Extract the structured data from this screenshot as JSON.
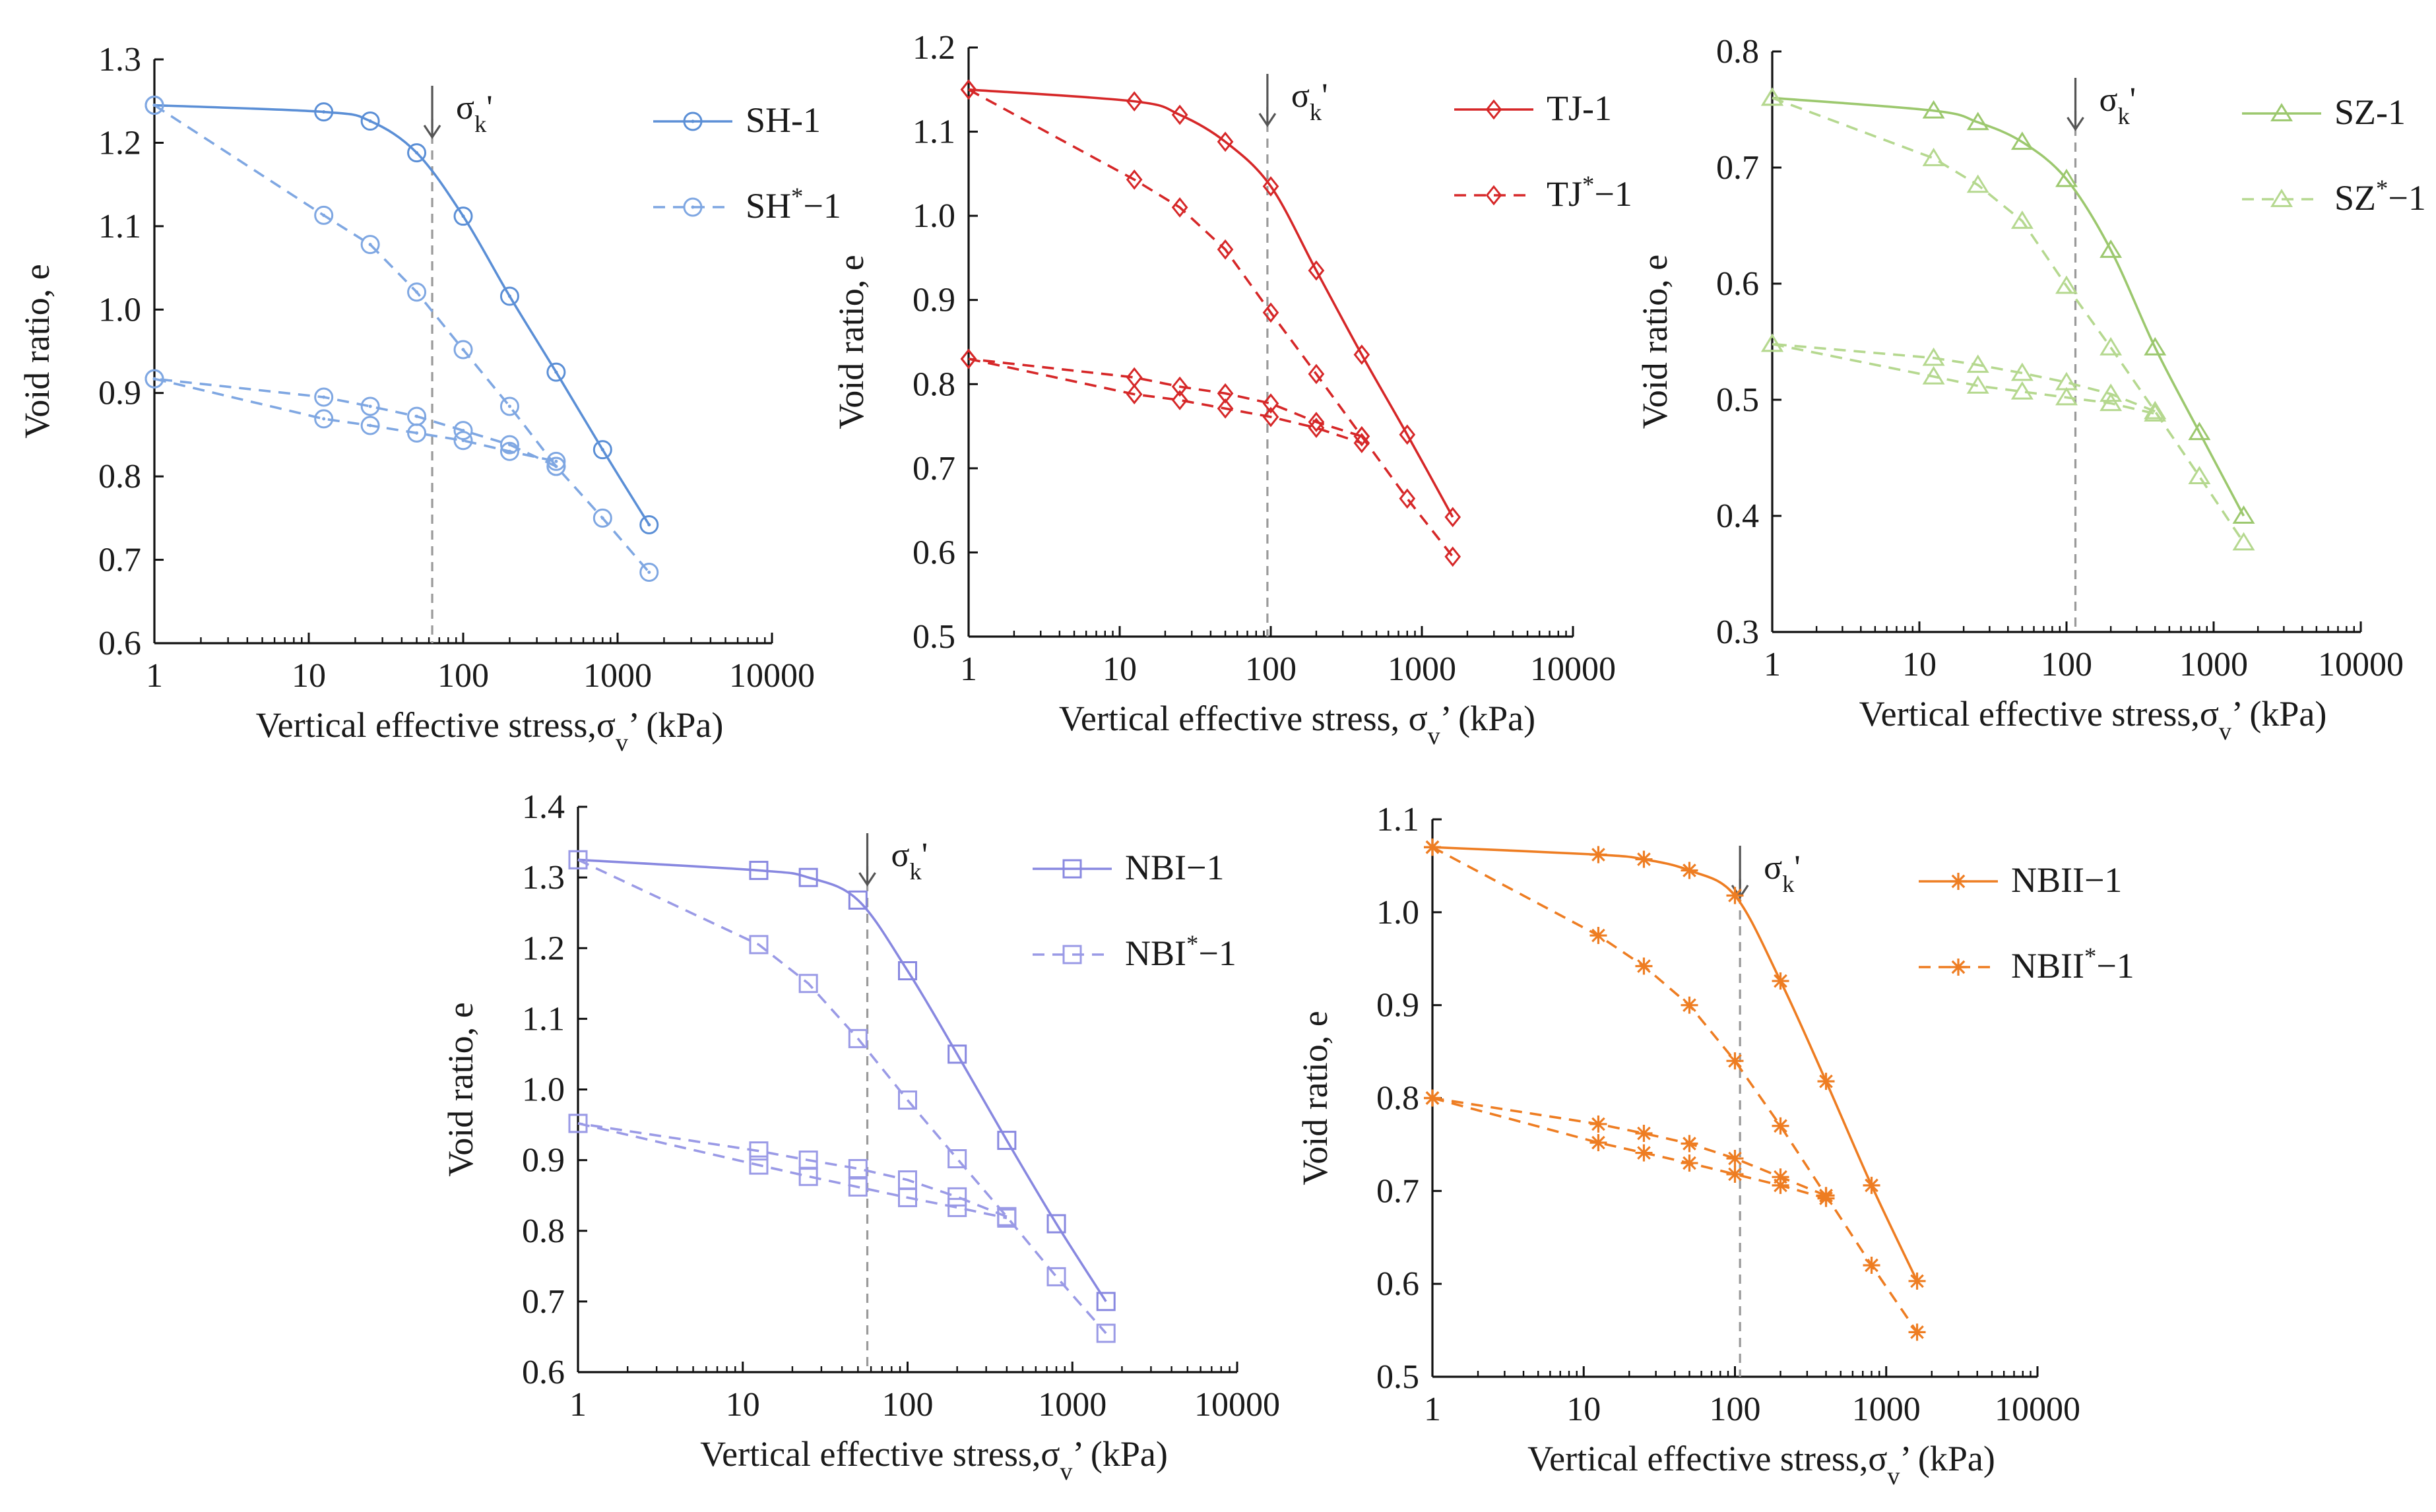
{
  "chart_data": [
    {
      "type": "line",
      "id": "sh",
      "xlabel": "Vertical effective stress,σv’ (kPa)",
      "ylabel": "Void ratio, e",
      "xscale": "log",
      "xlim": [
        1,
        10000
      ],
      "ylim": [
        0.6,
        1.3
      ],
      "yticks": [
        0.6,
        0.7,
        0.8,
        0.9,
        1.0,
        1.1,
        1.2,
        1.3
      ],
      "xticks": [
        1,
        10,
        100,
        1000,
        10000
      ],
      "marker": "circle",
      "color": "#5b8fd6",
      "color_light": "#7fa7e2",
      "sigma_k_label": "σk'",
      "sigma_k": 63,
      "legend_position": "top-right",
      "series": [
        {
          "name": "SH-1",
          "style": "solid",
          "smooth": true,
          "points": [
            [
              1,
              1.245
            ],
            [
              12.5,
              1.237
            ],
            [
              25,
              1.226
            ],
            [
              50,
              1.188
            ],
            [
              100,
              1.112
            ],
            [
              200,
              1.016
            ],
            [
              400,
              0.925
            ],
            [
              800,
              0.832
            ],
            [
              1600,
              0.742
            ]
          ]
        },
        {
          "name": "SH*−1",
          "style": "dashed",
          "smooth": false,
          "points": [
            [
              1,
              1.245
            ],
            [
              12.5,
              1.113
            ],
            [
              25,
              1.078
            ],
            [
              50,
              1.021
            ],
            [
              100,
              0.952
            ],
            [
              200,
              0.884
            ],
            [
              400,
              0.812
            ],
            [
              800,
              0.75
            ],
            [
              1600,
              0.685
            ]
          ]
        },
        {
          "name": "SH*−1 unload",
          "style": "dashed",
          "smooth": false,
          "legend": false,
          "points": [
            [
              400,
              0.812
            ],
            [
              200,
              0.838
            ],
            [
              100,
              0.855
            ],
            [
              50,
              0.872
            ],
            [
              25,
              0.884
            ],
            [
              12.5,
              0.895
            ],
            [
              1,
              0.917
            ]
          ]
        },
        {
          "name": "SH*−1 reload",
          "style": "dashed",
          "smooth": false,
          "legend": false,
          "points": [
            [
              1,
              0.917
            ],
            [
              12.5,
              0.869
            ],
            [
              25,
              0.861
            ],
            [
              50,
              0.852
            ],
            [
              100,
              0.843
            ],
            [
              200,
              0.83
            ],
            [
              400,
              0.818
            ]
          ]
        }
      ]
    },
    {
      "type": "line",
      "id": "tj",
      "xlabel": "Vertical effective stress, σv’ (kPa)",
      "ylabel": "Void ratio, e",
      "xscale": "log",
      "xlim": [
        1,
        10000
      ],
      "ylim": [
        0.5,
        1.2
      ],
      "yticks": [
        0.5,
        0.6,
        0.7,
        0.8,
        0.9,
        1.0,
        1.1,
        1.2
      ],
      "xticks": [
        1,
        10,
        100,
        1000,
        10000
      ],
      "marker": "diamond",
      "color": "#d62728",
      "color_light": "#d62728",
      "sigma_k_label": "σk'",
      "sigma_k": 95,
      "legend_position": "top-right",
      "series": [
        {
          "name": "TJ-1",
          "style": "solid",
          "smooth": true,
          "points": [
            [
              1,
              1.15
            ],
            [
              12.5,
              1.136
            ],
            [
              25,
              1.12
            ],
            [
              50,
              1.088
            ],
            [
              100,
              1.035
            ],
            [
              200,
              0.935
            ],
            [
              400,
              0.835
            ],
            [
              800,
              0.74
            ],
            [
              1600,
              0.642
            ]
          ]
        },
        {
          "name": "TJ*−1",
          "style": "dashed",
          "smooth": false,
          "points": [
            [
              1,
              1.15
            ],
            [
              12.5,
              1.043
            ],
            [
              25,
              1.01
            ],
            [
              50,
              0.96
            ],
            [
              100,
              0.885
            ],
            [
              200,
              0.812
            ],
            [
              400,
              0.738
            ],
            [
              800,
              0.664
            ],
            [
              1600,
              0.595
            ]
          ]
        },
        {
          "name": "TJ*−1 unload",
          "style": "dashed",
          "smooth": false,
          "legend": false,
          "points": [
            [
              400,
              0.738
            ],
            [
              200,
              0.755
            ],
            [
              100,
              0.777
            ],
            [
              50,
              0.789
            ],
            [
              25,
              0.797
            ],
            [
              12.5,
              0.808
            ],
            [
              1,
              0.83
            ]
          ]
        },
        {
          "name": "TJ*−1 reload",
          "style": "dashed",
          "smooth": false,
          "legend": false,
          "points": [
            [
              1,
              0.83
            ],
            [
              12.5,
              0.788
            ],
            [
              25,
              0.781
            ],
            [
              50,
              0.771
            ],
            [
              100,
              0.761
            ],
            [
              200,
              0.748
            ],
            [
              400,
              0.73
            ]
          ]
        }
      ]
    },
    {
      "type": "line",
      "id": "sz",
      "xlabel": "Vertical effective stress,σv’ (kPa)",
      "ylabel": "Void ratio, e",
      "xscale": "log",
      "xlim": [
        1,
        10000
      ],
      "ylim": [
        0.3,
        0.8
      ],
      "yticks": [
        0.3,
        0.4,
        0.5,
        0.6,
        0.7,
        0.8
      ],
      "xticks": [
        1,
        10,
        100,
        1000,
        10000
      ],
      "marker": "triangle",
      "color": "#9cc86e",
      "color_light": "#b5d88f",
      "sigma_k_label": "σk'",
      "sigma_k": 115,
      "legend_position": "top-right",
      "series": [
        {
          "name": "SZ-1",
          "style": "solid",
          "smooth": true,
          "points": [
            [
              1,
              0.76
            ],
            [
              12.5,
              0.749
            ],
            [
              25,
              0.739
            ],
            [
              50,
              0.722
            ],
            [
              100,
              0.69
            ],
            [
              200,
              0.629
            ],
            [
              400,
              0.545
            ],
            [
              800,
              0.472
            ],
            [
              1600,
              0.4
            ]
          ]
        },
        {
          "name": "SZ*−1",
          "style": "dashed",
          "smooth": false,
          "points": [
            [
              1,
              0.76
            ],
            [
              12.5,
              0.708
            ],
            [
              25,
              0.685
            ],
            [
              50,
              0.654
            ],
            [
              100,
              0.598
            ],
            [
              200,
              0.545
            ],
            [
              400,
              0.49
            ],
            [
              800,
              0.434
            ],
            [
              1600,
              0.377
            ]
          ]
        },
        {
          "name": "SZ*−1 unload",
          "style": "dashed",
          "smooth": false,
          "legend": false,
          "points": [
            [
              400,
              0.49
            ],
            [
              200,
              0.505
            ],
            [
              100,
              0.515
            ],
            [
              50,
              0.523
            ],
            [
              25,
              0.53
            ],
            [
              12.5,
              0.536
            ],
            [
              1,
              0.548
            ]
          ]
        },
        {
          "name": "SZ*−1 reload",
          "style": "dashed",
          "smooth": false,
          "legend": false,
          "points": [
            [
              1,
              0.548
            ],
            [
              12.5,
              0.52
            ],
            [
              25,
              0.512
            ],
            [
              50,
              0.507
            ],
            [
              100,
              0.502
            ],
            [
              200,
              0.497
            ],
            [
              400,
              0.488
            ]
          ]
        }
      ]
    },
    {
      "type": "line",
      "id": "nb1",
      "xlabel": "Vertical effective stress,σv’ (kPa)",
      "ylabel": "Void ratio, e",
      "xscale": "log",
      "xlim": [
        1,
        10000
      ],
      "ylim": [
        0.6,
        1.4
      ],
      "yticks": [
        0.6,
        0.7,
        0.8,
        0.9,
        1.0,
        1.1,
        1.2,
        1.3,
        1.4
      ],
      "xticks": [
        1,
        10,
        100,
        1000,
        10000
      ],
      "marker": "square",
      "color": "#8888e0",
      "color_light": "#9a9ae6",
      "sigma_k_label": "σk'",
      "sigma_k": 57,
      "legend_position": "top-right",
      "series": [
        {
          "name": "NBI−1",
          "style": "solid",
          "smooth": true,
          "points": [
            [
              1,
              1.325
            ],
            [
              12.5,
              1.31
            ],
            [
              25,
              1.3
            ],
            [
              50,
              1.268
            ],
            [
              100,
              1.168
            ],
            [
              200,
              1.05
            ],
            [
              400,
              0.928
            ],
            [
              800,
              0.81
            ],
            [
              1600,
              0.7
            ]
          ]
        },
        {
          "name": "NBI*−1",
          "style": "dashed",
          "smooth": false,
          "points": [
            [
              1,
              1.325
            ],
            [
              12.5,
              1.205
            ],
            [
              25,
              1.15
            ],
            [
              50,
              1.072
            ],
            [
              100,
              0.985
            ],
            [
              200,
              0.902
            ],
            [
              400,
              0.82
            ],
            [
              800,
              0.735
            ],
            [
              1600,
              0.655
            ]
          ]
        },
        {
          "name": "NBI*−1 unload",
          "style": "dashed",
          "smooth": false,
          "legend": false,
          "points": [
            [
              400,
              0.82
            ],
            [
              200,
              0.848
            ],
            [
              100,
              0.872
            ],
            [
              50,
              0.888
            ],
            [
              25,
              0.9
            ],
            [
              12.5,
              0.913
            ],
            [
              1,
              0.952
            ]
          ]
        },
        {
          "name": "NBI*−1 reload",
          "style": "dashed",
          "smooth": false,
          "legend": false,
          "points": [
            [
              1,
              0.952
            ],
            [
              12.5,
              0.893
            ],
            [
              25,
              0.877
            ],
            [
              50,
              0.862
            ],
            [
              100,
              0.847
            ],
            [
              200,
              0.833
            ],
            [
              400,
              0.818
            ]
          ]
        }
      ]
    },
    {
      "type": "line",
      "id": "nb2",
      "xlabel": "Vertical effective stress,σv’ (kPa)",
      "ylabel": "Void ratio, e",
      "xscale": "log",
      "xlim": [
        1,
        10000
      ],
      "ylim": [
        0.5,
        1.1
      ],
      "yticks": [
        0.5,
        0.6,
        0.7,
        0.8,
        0.9,
        1.0,
        1.1
      ],
      "xticks": [
        1,
        10,
        100,
        1000,
        10000
      ],
      "marker": "asterisk",
      "color": "#ee7d22",
      "color_light": "#ee7d22",
      "sigma_k_label": "σk'",
      "sigma_k": 108,
      "legend_position": "top-right",
      "series": [
        {
          "name": "NBII−1",
          "style": "solid",
          "smooth": true,
          "points": [
            [
              1,
              1.07
            ],
            [
              12.5,
              1.062
            ],
            [
              25,
              1.057
            ],
            [
              50,
              1.045
            ],
            [
              100,
              1.018
            ],
            [
              200,
              0.926
            ],
            [
              400,
              0.818
            ],
            [
              800,
              0.706
            ],
            [
              1600,
              0.603
            ]
          ]
        },
        {
          "name": "NBII*−1",
          "style": "dashed",
          "smooth": false,
          "points": [
            [
              1,
              1.07
            ],
            [
              12.5,
              0.975
            ],
            [
              25,
              0.942
            ],
            [
              50,
              0.9
            ],
            [
              100,
              0.84
            ],
            [
              200,
              0.77
            ],
            [
              400,
              0.695
            ],
            [
              800,
              0.62
            ],
            [
              1600,
              0.548
            ]
          ]
        },
        {
          "name": "NBII*−1 unload",
          "style": "dashed",
          "smooth": false,
          "legend": false,
          "points": [
            [
              400,
              0.695
            ],
            [
              200,
              0.715
            ],
            [
              100,
              0.735
            ],
            [
              50,
              0.751
            ],
            [
              25,
              0.762
            ],
            [
              12.5,
              0.772
            ],
            [
              1,
              0.8
            ]
          ]
        },
        {
          "name": "NBII*−1 reload",
          "style": "dashed",
          "smooth": false,
          "legend": false,
          "points": [
            [
              1,
              0.8
            ],
            [
              12.5,
              0.752
            ],
            [
              25,
              0.741
            ],
            [
              50,
              0.73
            ],
            [
              100,
              0.718
            ],
            [
              200,
              0.706
            ],
            [
              400,
              0.692
            ]
          ]
        }
      ]
    }
  ]
}
